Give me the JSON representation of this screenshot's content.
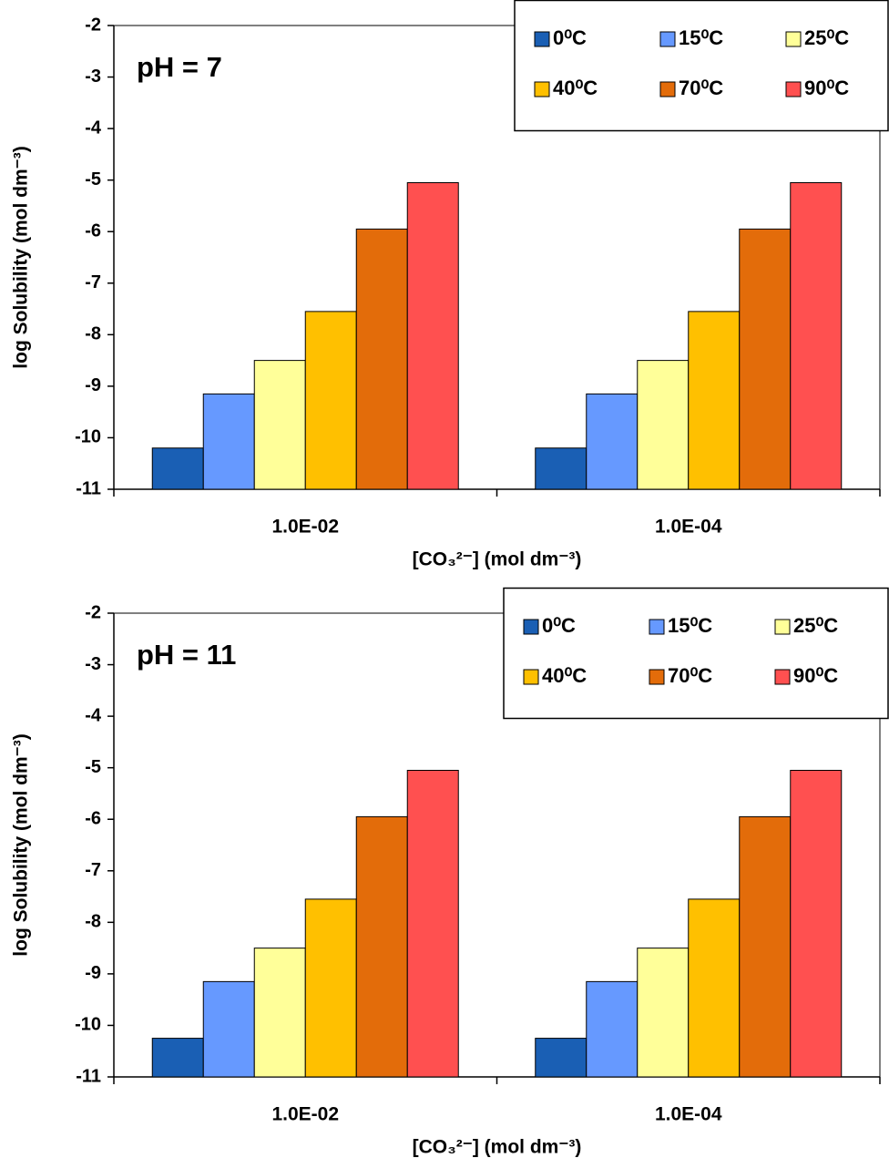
{
  "chart_data": [
    {
      "type": "bar",
      "annotation": "pH = 7",
      "ylabel": "log Solubility (mol dm⁻³)",
      "xlabel": "[CO₃²⁻] (mol dm⁻³)",
      "categories": [
        "1.0E-02",
        "1.0E-04"
      ],
      "ylim": [
        -11,
        -2
      ],
      "yticks": [
        -11,
        -10,
        -9,
        -8,
        -7,
        -6,
        -5,
        -4,
        -3,
        -2
      ],
      "series": [
        {
          "name": "0⁰C",
          "color": "#1a5fb4",
          "values": [
            -10.2,
            -10.2
          ]
        },
        {
          "name": "15⁰C",
          "color": "#6699ff",
          "values": [
            -9.15,
            -9.15
          ]
        },
        {
          "name": "25⁰C",
          "color": "#ffff99",
          "values": [
            -8.5,
            -8.5
          ]
        },
        {
          "name": "40⁰C",
          "color": "#ffc000",
          "values": [
            -7.55,
            -7.55
          ]
        },
        {
          "name": "70⁰C",
          "color": "#e36c0a",
          "values": [
            -5.95,
            -5.95
          ]
        },
        {
          "name": "90⁰C",
          "color": "#ff5050",
          "values": [
            -5.05,
            -5.05
          ]
        }
      ]
    },
    {
      "type": "bar",
      "annotation": "pH = 11",
      "ylabel": "log Solubility (mol dm⁻³)",
      "xlabel": "[CO₃²⁻] (mol dm⁻³)",
      "categories": [
        "1.0E-02",
        "1.0E-04"
      ],
      "ylim": [
        -11,
        -2
      ],
      "yticks": [
        -11,
        -10,
        -9,
        -8,
        -7,
        -6,
        -5,
        -4,
        -3,
        -2
      ],
      "series": [
        {
          "name": "0⁰C",
          "color": "#1a5fb4",
          "values": [
            -10.25,
            -10.25
          ]
        },
        {
          "name": "15⁰C",
          "color": "#6699ff",
          "values": [
            -9.15,
            -9.15
          ]
        },
        {
          "name": "25⁰C",
          "color": "#ffff99",
          "values": [
            -8.5,
            -8.5
          ]
        },
        {
          "name": "40⁰C",
          "color": "#ffc000",
          "values": [
            -7.55,
            -7.55
          ]
        },
        {
          "name": "70⁰C",
          "color": "#e36c0a",
          "values": [
            -5.95,
            -5.95
          ]
        },
        {
          "name": "90⁰C",
          "color": "#ff5050",
          "values": [
            -5.05,
            -5.05
          ]
        }
      ]
    }
  ]
}
